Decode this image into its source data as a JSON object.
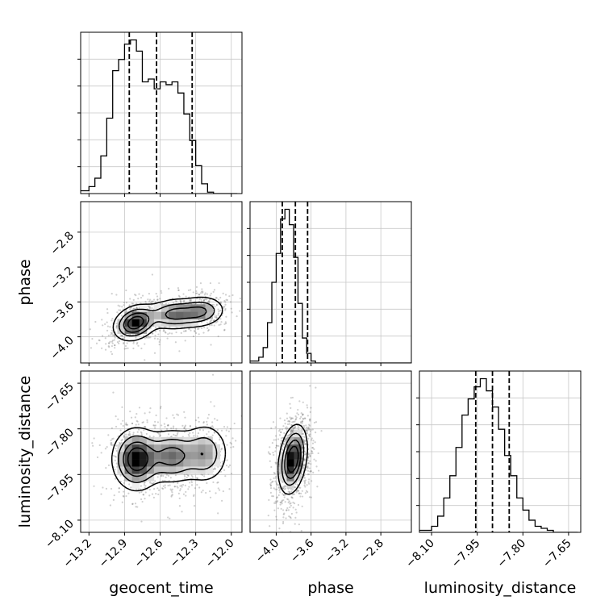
{
  "chart_data": {
    "type": "corner",
    "grid": true,
    "parameters": [
      {
        "name": "geocent_time",
        "label": "geocent_time",
        "range": [
          -13.27,
          -11.91
        ],
        "ticks": [
          -13.2,
          -12.9,
          -12.6,
          -12.3,
          -12.0
        ],
        "tick_labels": [
          "−13.2",
          "−12.9",
          "−12.6",
          "−12.3",
          "−12.0"
        ],
        "quantiles": [
          -12.86,
          -12.63,
          -12.33
        ],
        "hist_bins": [
          -13.27,
          -13.2,
          -13.15,
          -13.1,
          -13.05,
          -13.0,
          -12.95,
          -12.9,
          -12.85,
          -12.8,
          -12.75,
          -12.7,
          -12.65,
          -12.6,
          -12.55,
          -12.5,
          -12.45,
          -12.4,
          -12.35,
          -12.3,
          -12.25,
          -12.2,
          -12.15,
          -12.1,
          -12.05,
          -12.0,
          -11.95
        ],
        "hist_counts": [
          2,
          5,
          11,
          27,
          54,
          88,
          96,
          107,
          110,
          102,
          80,
          82,
          75,
          80,
          78,
          80,
          72,
          57,
          38,
          20,
          7,
          1,
          0,
          0,
          0,
          0
        ]
      },
      {
        "name": "phase",
        "label": "phase",
        "range": [
          -4.3,
          -2.45
        ],
        "ticks": [
          -4.0,
          -3.6,
          -3.2,
          -2.8
        ],
        "tick_labels": [
          "−4.0",
          "−3.6",
          "−3.2",
          "−2.8"
        ],
        "quantiles": [
          -3.93,
          -3.78,
          -3.64
        ],
        "hist_bins": [
          -4.3,
          -4.2,
          -4.15,
          -4.1,
          -4.05,
          -4.0,
          -3.95,
          -3.9,
          -3.85,
          -3.8,
          -3.75,
          -3.7,
          -3.65,
          -3.6,
          -3.55,
          -3.5,
          -3.45,
          -3.4,
          -3.35,
          -3.3,
          -2.45
        ],
        "hist_counts": [
          1,
          3,
          8,
          21,
          42,
          57,
          75,
          80,
          72,
          55,
          31,
          13,
          5,
          1,
          0,
          0,
          0,
          0,
          0,
          0
        ]
      },
      {
        "name": "luminosity_distance",
        "label": "luminosity_distance",
        "range": [
          -8.14,
          -7.61
        ],
        "ticks": [
          -8.1,
          -7.95,
          -7.8,
          -7.65
        ],
        "tick_labels": [
          "−8.10",
          "−7.95",
          "−7.80",
          "−7.65"
        ],
        "quantiles": [
          -7.955,
          -7.9,
          -7.845
        ],
        "hist_bins": [
          -8.14,
          -8.1,
          -8.08,
          -8.06,
          -8.04,
          -8.02,
          -8.0,
          -7.98,
          -7.96,
          -7.94,
          -7.92,
          -7.9,
          -7.88,
          -7.86,
          -7.84,
          -7.82,
          -7.8,
          -7.78,
          -7.76,
          -7.74,
          -7.72,
          -7.7,
          -7.68,
          -7.66,
          -7.64,
          -7.62
        ],
        "hist_counts": [
          1,
          3,
          8,
          17,
          28,
          42,
          58,
          66,
          72,
          76,
          70,
          62,
          51,
          38,
          28,
          17,
          11,
          6,
          3,
          2,
          1,
          0,
          0,
          0,
          0
        ]
      }
    ],
    "density_2d": [
      {
        "x": "geocent_time",
        "y": "phase",
        "modes": [
          {
            "x": -12.81,
            "y": -3.84,
            "sx": 0.09,
            "sy": 0.1,
            "rho": 0.25,
            "w": 1.0
          },
          {
            "x": -12.48,
            "y": -3.74,
            "sx": 0.12,
            "sy": 0.09,
            "rho": 0.1,
            "w": 0.65
          },
          {
            "x": -12.25,
            "y": -3.71,
            "sx": 0.1,
            "sy": 0.09,
            "rho": 0.1,
            "w": 0.55
          }
        ]
      },
      {
        "x": "geocent_time",
        "y": "luminosity_distance",
        "modes": [
          {
            "x": -12.8,
            "y": -7.9,
            "sx": 0.1,
            "sy": 0.05,
            "rho": 0.0,
            "w": 1.0
          },
          {
            "x": -12.5,
            "y": -7.89,
            "sx": 0.12,
            "sy": 0.045,
            "rho": 0.0,
            "w": 0.65
          },
          {
            "x": -12.22,
            "y": -7.88,
            "sx": 0.1,
            "sy": 0.05,
            "rho": 0.0,
            "w": 0.5
          }
        ]
      },
      {
        "x": "phase",
        "y": "luminosity_distance",
        "modes": [
          {
            "x": -3.81,
            "y": -7.9,
            "sx": 0.08,
            "sy": 0.055,
            "rho": 0.3,
            "w": 1.0
          }
        ]
      }
    ]
  }
}
